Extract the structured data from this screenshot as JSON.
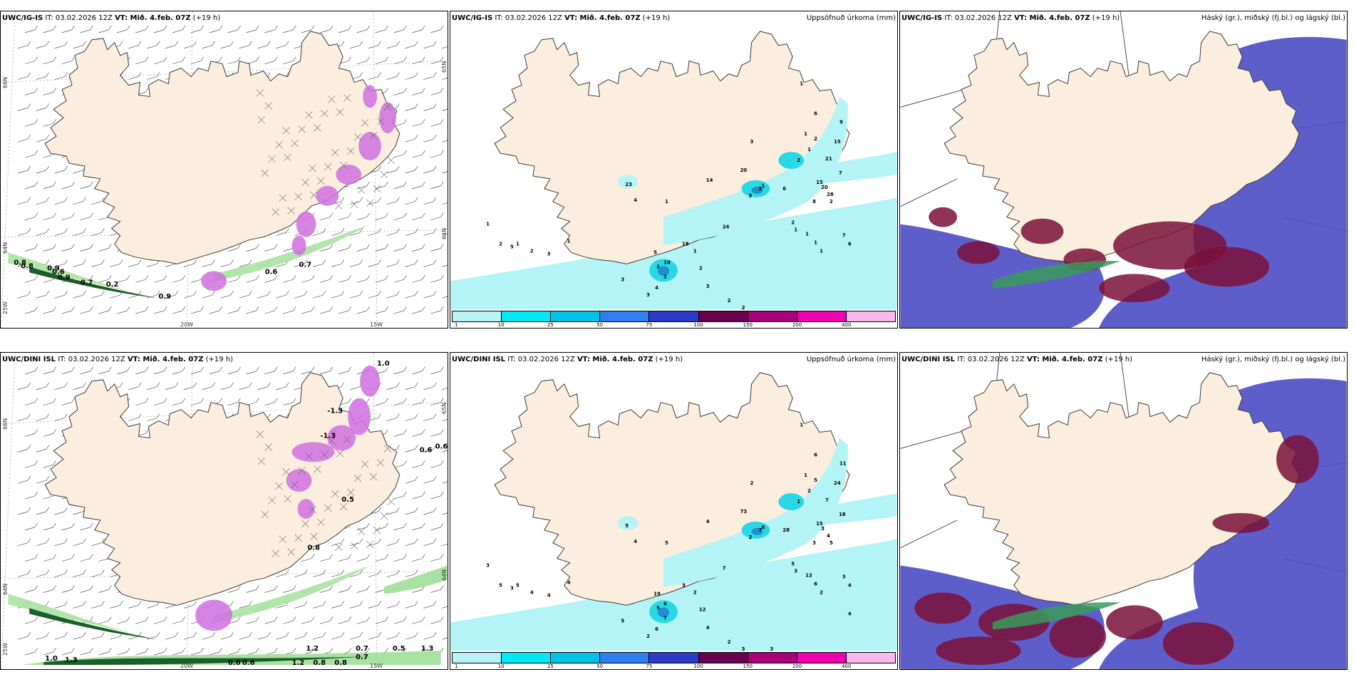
{
  "rows": [
    {
      "model": "UWC/IG-IS",
      "it": "IT: 03.02.2026 12Z",
      "vt": "VT: Mið. 4.feb. 07Z",
      "lead": "(+19 h)",
      "precip_numbers": [
        "1",
        "6",
        "9",
        "1",
        "2",
        "1",
        "2",
        "15",
        "21",
        "7",
        "20",
        "3",
        "1",
        "3",
        "3",
        "6",
        "15",
        "28",
        "8",
        "2",
        "1",
        "1",
        "1",
        "1",
        "4",
        "1",
        "24",
        "18",
        "1",
        "10",
        "5",
        "2",
        "2",
        "4",
        "2",
        "23",
        "20",
        "14",
        "7",
        "6",
        "2",
        "1",
        "2",
        "1",
        "5",
        "2",
        "3",
        "1",
        "3",
        "3",
        "3",
        "2",
        "2"
      ],
      "wind_labels": [
        "0.8",
        "0.8",
        "0.9",
        "0.6",
        "0.9",
        "0.7",
        "0.2",
        "0.9",
        "0.6",
        "0.7"
      ]
    },
    {
      "model": "UWC/DINI ISL",
      "it": "IT: 03.02.2026 12Z",
      "vt": "VT: Mið. 4.feb. 07Z",
      "lead": "(+19 h)",
      "precip_numbers": [
        "1",
        "6",
        "11",
        "1",
        "5",
        "2",
        "1",
        "24",
        "7",
        "18",
        "3",
        "2",
        "6",
        "2",
        "7",
        "28",
        "15",
        "4",
        "3",
        "5",
        "3",
        "12",
        "6",
        "2",
        "4",
        "5",
        "7",
        "3",
        "2",
        "6",
        "19",
        "5",
        "7",
        "6",
        "12",
        "5",
        "73",
        "4",
        "3",
        "4",
        "5",
        "3",
        "5",
        "5",
        "3",
        "4",
        "4",
        "4",
        "5",
        "2",
        "4",
        "2",
        "3",
        "3",
        "4"
      ],
      "wind_labels": [
        "1.0",
        "-1.3",
        "-1.3",
        "0.6",
        "0.6",
        "0.5",
        "0.8",
        "1.0",
        "1.3",
        "0.6",
        "0.6",
        "1.2",
        "0.5",
        "0.7",
        "0.8",
        "0.8",
        "1.2",
        "1.3",
        "0.7"
      ]
    }
  ],
  "panels": {
    "precip_title": "Uppsöfnuð úrkoma (mm)",
    "cloud_title": "Háský (gr.), miðský (fj.bl.) og lágský (bl.)",
    "lat_labels": [
      "66N",
      "64N",
      "65N"
    ],
    "lon_labels": [
      "20W",
      "15W"
    ],
    "lon_lab_25": "25W"
  },
  "colorbar": {
    "ticks": [
      "1",
      "10",
      "25",
      "50",
      "75",
      "100",
      "150",
      "200",
      "400"
    ],
    "colors": [
      "#b8f4f5",
      "#00e8f0",
      "#00c2e8",
      "#2f7ff0",
      "#2c3cc8",
      "#6a0050",
      "#a8007a",
      "#f000b0",
      "#f8b8f0"
    ]
  },
  "palette": {
    "land": "#fbeede",
    "coast": "#3a3a3a",
    "precip_light": "#b4f4f6",
    "precip_mid": "#2ad8e4",
    "precip_dark": "#1f8fd0",
    "wind_green": "#a8e2a0",
    "wind_dark": "#1b5e2a",
    "wind_pink": "#d070e0",
    "high_cloud": "#4c4cc4",
    "mid_cloud": "#7a1038",
    "low_cloud": "#3a9a5a"
  }
}
